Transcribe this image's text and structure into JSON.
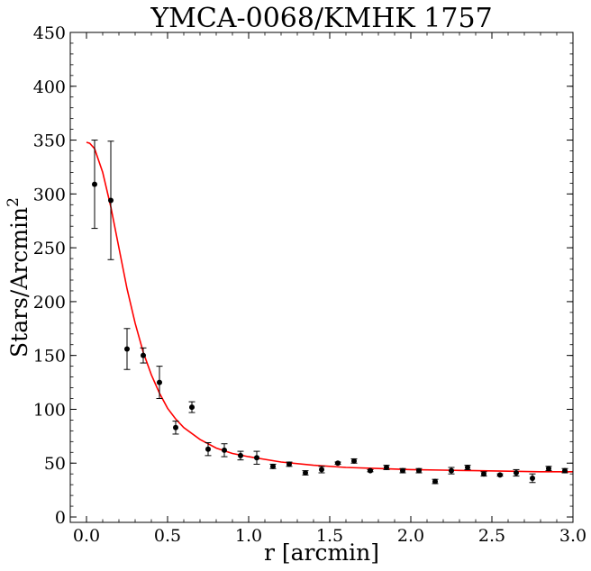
{
  "chart_data": {
    "type": "scatter",
    "title": "YMCA-0068/KMHK 1757",
    "xlabel": "r [arcmin]",
    "ylabel": "Stars/Arcmin",
    "ylabel_sup": "2",
    "xlim": [
      -0.1,
      3.0
    ],
    "ylim": [
      -5,
      450
    ],
    "xticks": [
      "0.0",
      "0.5",
      "1.0",
      "1.5",
      "2.0",
      "2.5",
      "3.0"
    ],
    "yticks": [
      "0",
      "50",
      "100",
      "150",
      "200",
      "250",
      "300",
      "350",
      "400",
      "450"
    ],
    "grid": false,
    "series": [
      {
        "kind": "errorbar",
        "color": "#000000",
        "points": [
          {
            "x": 0.05,
            "y": 309,
            "err": 41
          },
          {
            "x": 0.15,
            "y": 294,
            "err": 55
          },
          {
            "x": 0.25,
            "y": 156,
            "err": 19
          },
          {
            "x": 0.35,
            "y": 150,
            "err": 7
          },
          {
            "x": 0.45,
            "y": 125,
            "err": 15
          },
          {
            "x": 0.55,
            "y": 83,
            "err": 6
          },
          {
            "x": 0.65,
            "y": 102,
            "err": 5
          },
          {
            "x": 0.75,
            "y": 63,
            "err": 6
          },
          {
            "x": 0.85,
            "y": 62,
            "err": 6
          },
          {
            "x": 0.95,
            "y": 57,
            "err": 4
          },
          {
            "x": 1.05,
            "y": 55,
            "err": 6
          },
          {
            "x": 1.15,
            "y": 47,
            "err": 2
          },
          {
            "x": 1.25,
            "y": 49,
            "err": 2
          },
          {
            "x": 1.35,
            "y": 41,
            "err": 2
          },
          {
            "x": 1.45,
            "y": 44,
            "err": 3
          },
          {
            "x": 1.55,
            "y": 50,
            "err": 1
          },
          {
            "x": 1.65,
            "y": 52,
            "err": 2
          },
          {
            "x": 1.75,
            "y": 43,
            "err": 1
          },
          {
            "x": 1.85,
            "y": 46,
            "err": 2
          },
          {
            "x": 1.95,
            "y": 43,
            "err": 2
          },
          {
            "x": 2.05,
            "y": 43,
            "err": 2
          },
          {
            "x": 2.15,
            "y": 33,
            "err": 2
          },
          {
            "x": 2.25,
            "y": 43,
            "err": 3
          },
          {
            "x": 2.35,
            "y": 46,
            "err": 2
          },
          {
            "x": 2.45,
            "y": 40,
            "err": 2
          },
          {
            "x": 2.55,
            "y": 39,
            "err": 1
          },
          {
            "x": 2.65,
            "y": 41,
            "err": 3
          },
          {
            "x": 2.75,
            "y": 36,
            "err": 4
          },
          {
            "x": 2.85,
            "y": 45,
            "err": 2
          },
          {
            "x": 2.95,
            "y": 43,
            "err": 2
          }
        ]
      },
      {
        "kind": "line",
        "color": "#ff0000",
        "x": [
          0.0,
          0.02,
          0.05,
          0.1,
          0.15,
          0.2,
          0.25,
          0.3,
          0.35,
          0.4,
          0.45,
          0.5,
          0.55,
          0.6,
          0.7,
          0.8,
          0.9,
          1.0,
          1.2,
          1.4,
          1.6,
          1.8,
          2.0,
          2.2,
          2.4,
          2.6,
          2.8,
          3.0
        ],
        "y": [
          348,
          347,
          342,
          320,
          288,
          250,
          212,
          180,
          153,
          132,
          115,
          101,
          91,
          83,
          72,
          64,
          59,
          56,
          51,
          48,
          46,
          45,
          44,
          43.5,
          43,
          42.5,
          42,
          42
        ]
      }
    ]
  }
}
